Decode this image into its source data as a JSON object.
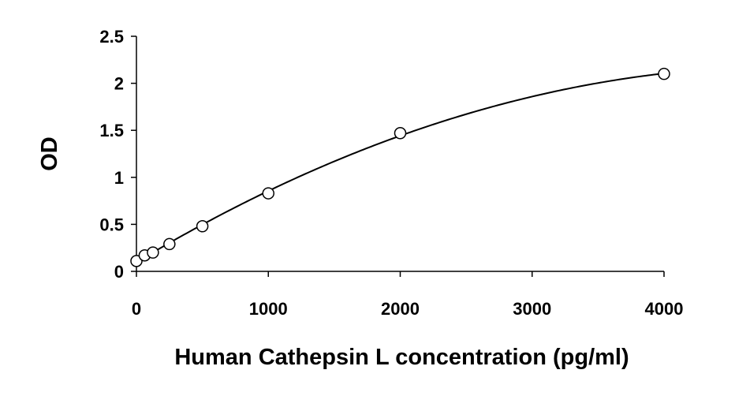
{
  "chart_data": {
    "type": "scatter",
    "title": "",
    "xlabel": "Human Cathepsin L concentration (pg/ml)",
    "ylabel": "OD",
    "xlim": [
      0,
      4000
    ],
    "ylim": [
      0,
      2.5
    ],
    "x_ticks": [
      0,
      1000,
      2000,
      3000,
      4000
    ],
    "y_ticks": [
      0,
      0.5,
      1,
      1.5,
      2,
      2.5
    ],
    "x_tick_labels": [
      "0",
      "1000",
      "2000",
      "3000",
      "4000"
    ],
    "y_tick_labels": [
      "0",
      "0.5",
      "1",
      "1.5",
      "2",
      "2.5"
    ],
    "grid": false,
    "legend": "none",
    "series": [
      {
        "marker": "open-circle",
        "trendline": "smooth polynomial fit",
        "x": [
          0,
          62.5,
          125,
          250,
          500,
          1000,
          2000,
          4000
        ],
        "y": [
          0.11,
          0.17,
          0.2,
          0.29,
          0.48,
          0.83,
          1.47,
          2.1
        ]
      }
    ]
  }
}
